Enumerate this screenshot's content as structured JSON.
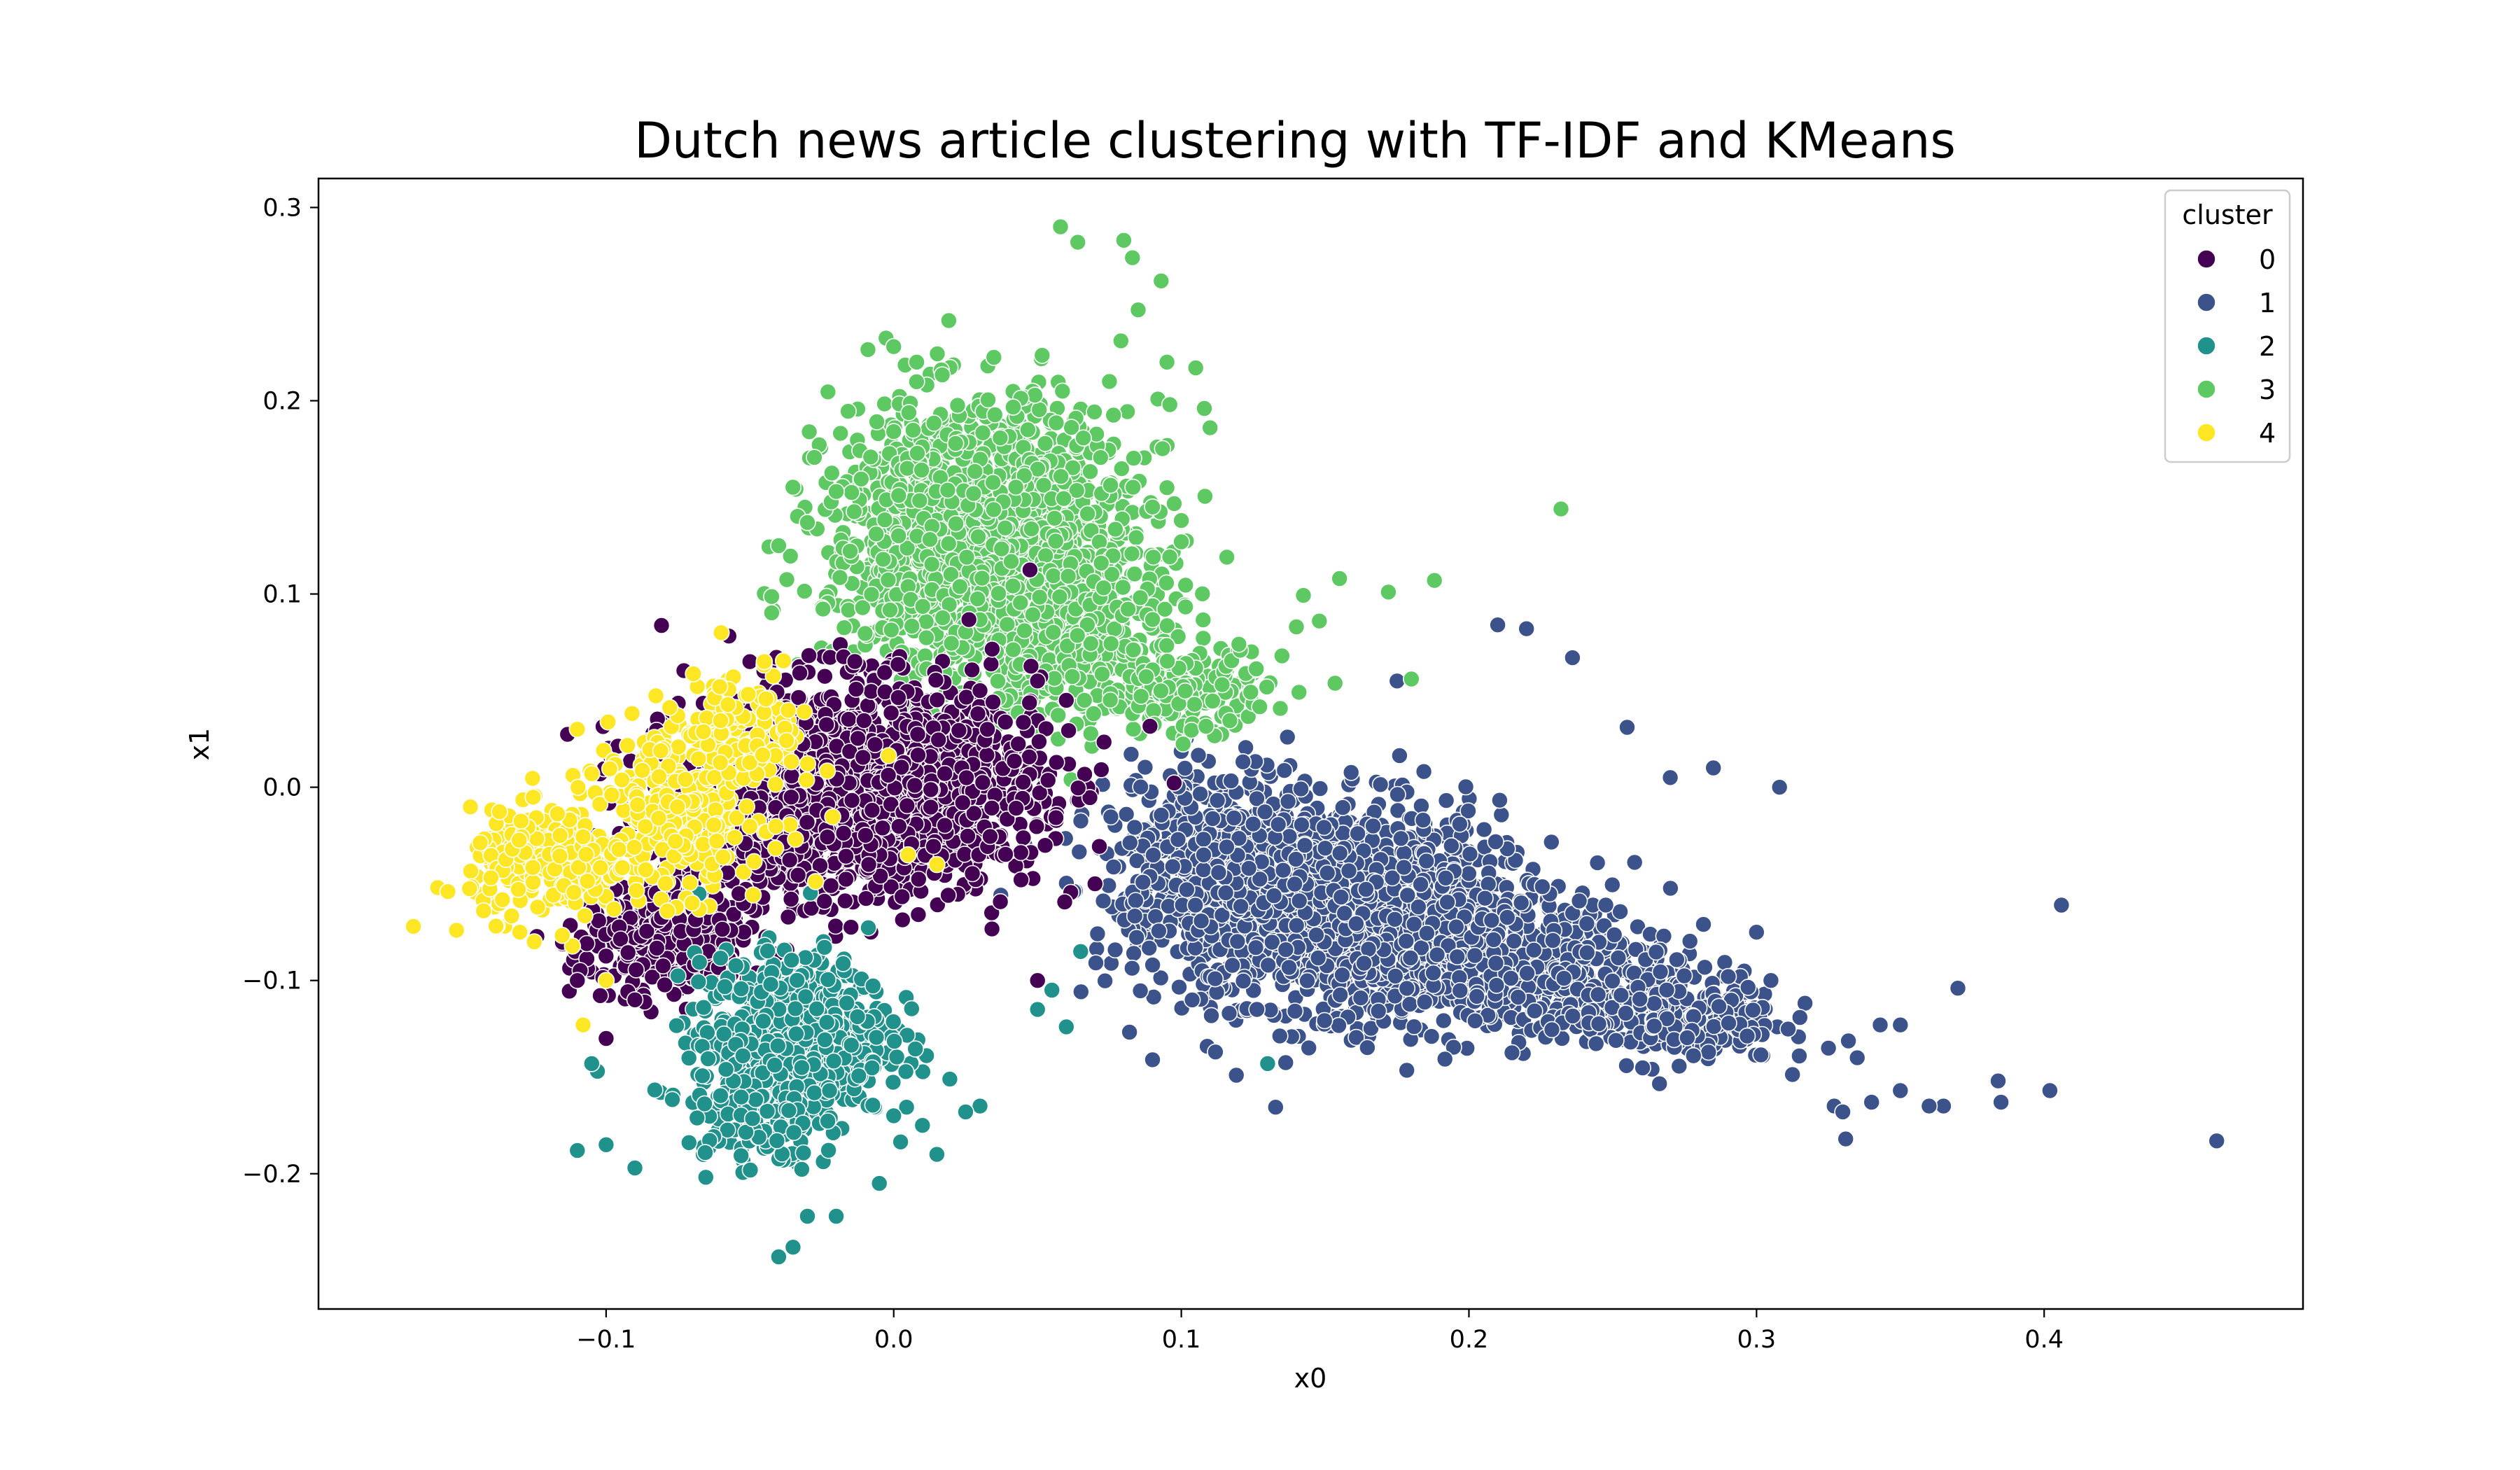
{
  "chart_data": {
    "type": "scatter",
    "title": "Dutch news article clustering with TF-IDF and KMeans",
    "xlabel": "x0",
    "ylabel": "x1",
    "xlim": [
      -0.2,
      0.49
    ],
    "ylim": [
      -0.27,
      0.315
    ],
    "xticks": [
      -0.1,
      0.0,
      0.1,
      0.2,
      0.3,
      0.4
    ],
    "xtick_labels": [
      "−0.1",
      "0.0",
      "0.1",
      "0.2",
      "0.3",
      "0.4"
    ],
    "yticks": [
      -0.2,
      -0.1,
      0.0,
      0.1,
      0.2,
      0.3
    ],
    "ytick_labels": [
      "−0.2",
      "−0.1",
      "0.0",
      "0.1",
      "0.2",
      "0.3"
    ],
    "grid": false,
    "legend": {
      "title": "cluster",
      "placement": "top-right"
    },
    "series": [
      {
        "name": "0",
        "color": "#440154",
        "centers": [
          [
            -0.01,
            0.0,
            0.04,
            0.035,
            1700
          ],
          [
            -0.08,
            -0.08,
            0.02,
            0.02,
            320
          ],
          [
            -0.05,
            -0.02,
            0.025,
            0.03,
            300
          ]
        ],
        "points": [
          [
            -0.11,
            -0.1
          ],
          [
            -0.1,
            -0.13
          ],
          [
            -0.11,
            -0.015
          ],
          [
            0.05,
            0.055
          ],
          [
            0.06,
            0.045
          ],
          [
            0.03,
            0.05
          ],
          [
            -0.05,
            0.065
          ],
          [
            -0.09,
            -0.11
          ],
          [
            0.05,
            -0.1
          ],
          [
            0.07,
            -0.05
          ]
        ]
      },
      {
        "name": "1",
        "color": "#3b528b",
        "centers": [
          [
            0.15,
            -0.06,
            0.04,
            0.035,
            1500
          ],
          [
            0.21,
            -0.09,
            0.04,
            0.025,
            650
          ],
          [
            0.27,
            -0.12,
            0.025,
            0.015,
            260
          ],
          [
            0.11,
            -0.03,
            0.025,
            0.03,
            300
          ]
        ],
        "points": [
          [
            0.46,
            -0.183
          ],
          [
            0.406,
            -0.061
          ],
          [
            0.402,
            -0.157
          ],
          [
            0.385,
            -0.163
          ],
          [
            0.384,
            -0.152
          ],
          [
            0.37,
            -0.104
          ],
          [
            0.365,
            -0.165
          ],
          [
            0.36,
            -0.165
          ],
          [
            0.35,
            -0.157
          ],
          [
            0.35,
            -0.123
          ],
          [
            0.343,
            -0.123
          ],
          [
            0.34,
            -0.163
          ],
          [
            0.335,
            -0.14
          ],
          [
            0.331,
            -0.182
          ],
          [
            0.327,
            -0.165
          ],
          [
            0.325,
            -0.135
          ],
          [
            0.308,
            0.0
          ],
          [
            0.305,
            -0.1
          ],
          [
            0.3,
            -0.075
          ],
          [
            0.33,
            -0.168
          ],
          [
            0.255,
            0.031
          ],
          [
            0.236,
            0.067
          ],
          [
            0.22,
            0.082
          ],
          [
            0.21,
            0.084
          ],
          [
            0.175,
            0.055
          ],
          [
            0.09,
            -0.141
          ],
          [
            0.285,
            0.01
          ],
          [
            0.27,
            0.005
          ]
        ]
      },
      {
        "name": "2",
        "color": "#21918c",
        "centers": [
          [
            -0.035,
            -0.13,
            0.022,
            0.028,
            700
          ],
          [
            -0.05,
            -0.17,
            0.015,
            0.02,
            120
          ]
        ],
        "points": [
          [
            -0.11,
            -0.188
          ],
          [
            -0.1,
            -0.185
          ],
          [
            -0.103,
            -0.147
          ],
          [
            -0.105,
            -0.143
          ],
          [
            -0.09,
            -0.197
          ],
          [
            -0.04,
            -0.243
          ],
          [
            -0.035,
            -0.238
          ],
          [
            0.0,
            -0.17
          ],
          [
            0.01,
            -0.175
          ],
          [
            0.03,
            -0.165
          ],
          [
            0.025,
            -0.168
          ],
          [
            0.05,
            -0.115
          ],
          [
            0.055,
            -0.105
          ],
          [
            0.06,
            -0.124
          ],
          [
            0.065,
            -0.085
          ],
          [
            0.13,
            -0.143
          ],
          [
            0.015,
            -0.19
          ],
          [
            -0.005,
            -0.205
          ],
          [
            -0.02,
            -0.222
          ],
          [
            -0.03,
            -0.222
          ]
        ]
      },
      {
        "name": "3",
        "color": "#5ec962",
        "centers": [
          [
            0.03,
            0.13,
            0.035,
            0.045,
            1500
          ],
          [
            0.06,
            0.08,
            0.03,
            0.03,
            400
          ],
          [
            0.1,
            0.05,
            0.02,
            0.015,
            150
          ]
        ],
        "points": [
          [
            0.058,
            0.29
          ],
          [
            0.064,
            0.282
          ],
          [
            0.08,
            0.283
          ],
          [
            0.083,
            0.274
          ],
          [
            0.085,
            0.247
          ],
          [
            0.093,
            0.262
          ],
          [
            0.095,
            0.22
          ],
          [
            0.105,
            0.217
          ],
          [
            0.108,
            0.196
          ],
          [
            0.11,
            0.186
          ],
          [
            0.096,
            0.198
          ],
          [
            0.075,
            0.21
          ],
          [
            0.079,
            0.231
          ],
          [
            0.232,
            0.144
          ],
          [
            0.188,
            0.107
          ],
          [
            0.172,
            0.101
          ],
          [
            0.155,
            0.108
          ],
          [
            0.148,
            0.086
          ],
          [
            0.14,
            0.083
          ],
          [
            0.12,
            0.074
          ],
          [
            0.135,
            0.068
          ],
          [
            0.18,
            0.056
          ],
          [
            0.0,
            0.228
          ],
          [
            0.008,
            0.22
          ],
          [
            0.0,
            0.184
          ],
          [
            -0.04,
            0.125
          ],
          [
            -0.03,
            0.137
          ],
          [
            -0.02,
            0.153
          ],
          [
            0.1,
            0.127
          ],
          [
            0.1,
            0.138
          ],
          [
            0.09,
            0.145
          ],
          [
            0.095,
            0.155
          ]
        ]
      },
      {
        "name": "4",
        "color": "#fde725",
        "centers": [
          [
            -0.12,
            -0.04,
            0.018,
            0.018,
            260
          ],
          [
            -0.075,
            -0.01,
            0.02,
            0.03,
            300
          ],
          [
            -0.05,
            0.03,
            0.015,
            0.02,
            100
          ]
        ],
        "points": [
          [
            -0.167,
            -0.072
          ],
          [
            -0.155,
            -0.054
          ],
          [
            -0.152,
            -0.074
          ],
          [
            -0.1,
            -0.1
          ],
          [
            -0.108,
            -0.123
          ],
          [
            -0.105,
            0.007
          ],
          [
            -0.11,
            0.03
          ],
          [
            -0.125,
            -0.08
          ],
          [
            -0.13,
            -0.075
          ],
          [
            0.015,
            -0.04
          ],
          [
            0.005,
            -0.035
          ],
          [
            -0.06,
            0.08
          ],
          [
            -0.045,
            0.065
          ]
        ]
      }
    ]
  }
}
